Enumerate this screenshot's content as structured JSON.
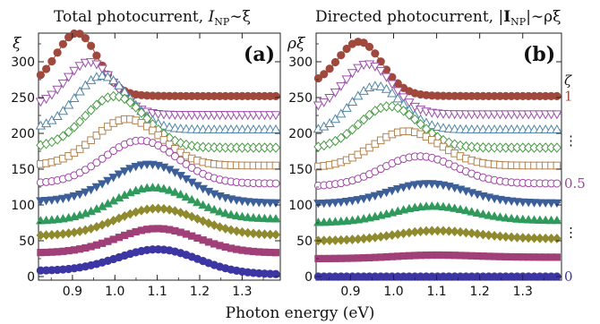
{
  "figure": {
    "xlabel": "Photon energy (eV)"
  },
  "chart_data": [
    {
      "type": "line",
      "panel_label": "(a)",
      "title_parts": {
        "prefix": "Total photocurrent, ",
        "sym": "I",
        "sub": "NP",
        "suffix": "∼ξ"
      },
      "ylabel": "ξ",
      "xlim": [
        0.82,
        1.39
      ],
      "ylim": [
        -5,
        340
      ],
      "xticks": [
        0.9,
        1.0,
        1.1,
        1.2,
        1.3
      ],
      "xtick_labels": [
        "0.9",
        "1.0",
        "1.1",
        "1.2",
        "1.3"
      ],
      "yticks": [
        0,
        50,
        100,
        150,
        200,
        250,
        300
      ],
      "ytick_labels": [
        "0",
        "50",
        "100",
        "150",
        "200",
        "250",
        "300"
      ],
      "series": [
        {
          "marker": "circle",
          "filled": true,
          "color": "#3b36a3",
          "base": 8,
          "peak_x": 1.1,
          "peak_y": 38,
          "tail": 3
        },
        {
          "marker": "square",
          "filled": true,
          "color": "#a03f78",
          "base": 33,
          "peak_x": 1.1,
          "peak_y": 67,
          "tail": 33
        },
        {
          "marker": "diamond",
          "filled": true,
          "color": "#8f8a2e",
          "base": 57,
          "peak_x": 1.1,
          "peak_y": 95,
          "tail": 58
        },
        {
          "marker": "triangle-up",
          "filled": true,
          "color": "#2f9a5c",
          "base": 77,
          "peak_x": 1.09,
          "peak_y": 124,
          "tail": 80
        },
        {
          "marker": "triangle-down",
          "filled": true,
          "color": "#3c5f9a",
          "base": 105,
          "peak_x": 1.08,
          "peak_y": 157,
          "tail": 103
        },
        {
          "marker": "circle",
          "filled": false,
          "color": "#a045a5",
          "base": 130,
          "peak_x": 1.06,
          "peak_y": 190,
          "tail": 130
        },
        {
          "marker": "square",
          "filled": false,
          "color": "#b3834f",
          "base": 155,
          "peak_x": 1.03,
          "peak_y": 220,
          "tail": 155
        },
        {
          "marker": "diamond",
          "filled": false,
          "color": "#4a9a45",
          "base": 180,
          "peak_x": 1.0,
          "peak_y": 252,
          "tail": 180
        },
        {
          "marker": "triangle-up",
          "filled": false,
          "color": "#4f86a8",
          "base": 205,
          "peak_x": 0.97,
          "peak_y": 280,
          "tail": 205
        },
        {
          "marker": "triangle-down",
          "filled": false,
          "color": "#9a4fa8",
          "base": 238,
          "peak_x": 0.94,
          "peak_y": 300,
          "tail": 226
        },
        {
          "marker": "circle",
          "filled": true,
          "color": "#a0483c",
          "base": 268,
          "peak_x": 0.91,
          "peak_y": 340,
          "tail": 252
        }
      ]
    },
    {
      "type": "line",
      "panel_label": "(b)",
      "title_parts": {
        "prefix": "Directed photocurrent, ",
        "bar_open": "|",
        "sym": "I",
        "sub": "NP",
        "bar_close": "|",
        "suffix": "∼ρξ"
      },
      "ylabel": "ρξ",
      "xlim": [
        0.82,
        1.39
      ],
      "ylim": [
        -5,
        340
      ],
      "xticks": [
        0.9,
        1.0,
        1.1,
        1.2,
        1.3
      ],
      "xtick_labels": [
        "0.9",
        "1.0",
        "1.1",
        "1.2",
        "1.3"
      ],
      "yticks": [
        0,
        50,
        100,
        150,
        200,
        250,
        300
      ],
      "ytick_labels": [
        "0",
        "50",
        "100",
        "150",
        "200",
        "250",
        "300"
      ],
      "zeta_label": "ζ",
      "zeta_markers": [
        {
          "text": "1",
          "color": "#a0483c",
          "y": 252
        },
        {
          "text": "⋮",
          "color": "#111111",
          "y": 190
        },
        {
          "text": "0.5",
          "color": "#a045a5",
          "y": 130
        },
        {
          "text": "⋮",
          "color": "#111111",
          "y": 62
        },
        {
          "text": "0",
          "color": "#3b36a3",
          "y": 0
        }
      ],
      "series": [
        {
          "marker": "circle",
          "filled": true,
          "color": "#3b36a3",
          "base": 0,
          "peak_x": 1.1,
          "peak_y": 0,
          "tail": 0
        },
        {
          "marker": "square",
          "filled": true,
          "color": "#a03f78",
          "base": 25,
          "peak_x": 1.1,
          "peak_y": 30,
          "tail": 27
        },
        {
          "marker": "diamond",
          "filled": true,
          "color": "#8f8a2e",
          "base": 50,
          "peak_x": 1.1,
          "peak_y": 64,
          "tail": 53
        },
        {
          "marker": "triangle-up",
          "filled": true,
          "color": "#2f9a5c",
          "base": 75,
          "peak_x": 1.09,
          "peak_y": 98,
          "tail": 78
        },
        {
          "marker": "triangle-down",
          "filled": true,
          "color": "#3c5f9a",
          "base": 102,
          "peak_x": 1.08,
          "peak_y": 130,
          "tail": 103
        },
        {
          "marker": "circle",
          "filled": false,
          "color": "#a045a5",
          "base": 126,
          "peak_x": 1.06,
          "peak_y": 168,
          "tail": 130
        },
        {
          "marker": "square",
          "filled": false,
          "color": "#b3834f",
          "base": 152,
          "peak_x": 1.03,
          "peak_y": 203,
          "tail": 155
        },
        {
          "marker": "diamond",
          "filled": false,
          "color": "#4a9a45",
          "base": 178,
          "peak_x": 0.99,
          "peak_y": 238,
          "tail": 180
        },
        {
          "marker": "triangle-up",
          "filled": false,
          "color": "#4f86a8",
          "base": 200,
          "peak_x": 0.96,
          "peak_y": 266,
          "tail": 205
        },
        {
          "marker": "triangle-down",
          "filled": false,
          "color": "#9a4fa8",
          "base": 232,
          "peak_x": 0.94,
          "peak_y": 297,
          "tail": 227
        },
        {
          "marker": "circle",
          "filled": true,
          "color": "#a0483c",
          "base": 268,
          "peak_x": 0.92,
          "peak_y": 328,
          "tail": 252
        }
      ]
    }
  ]
}
